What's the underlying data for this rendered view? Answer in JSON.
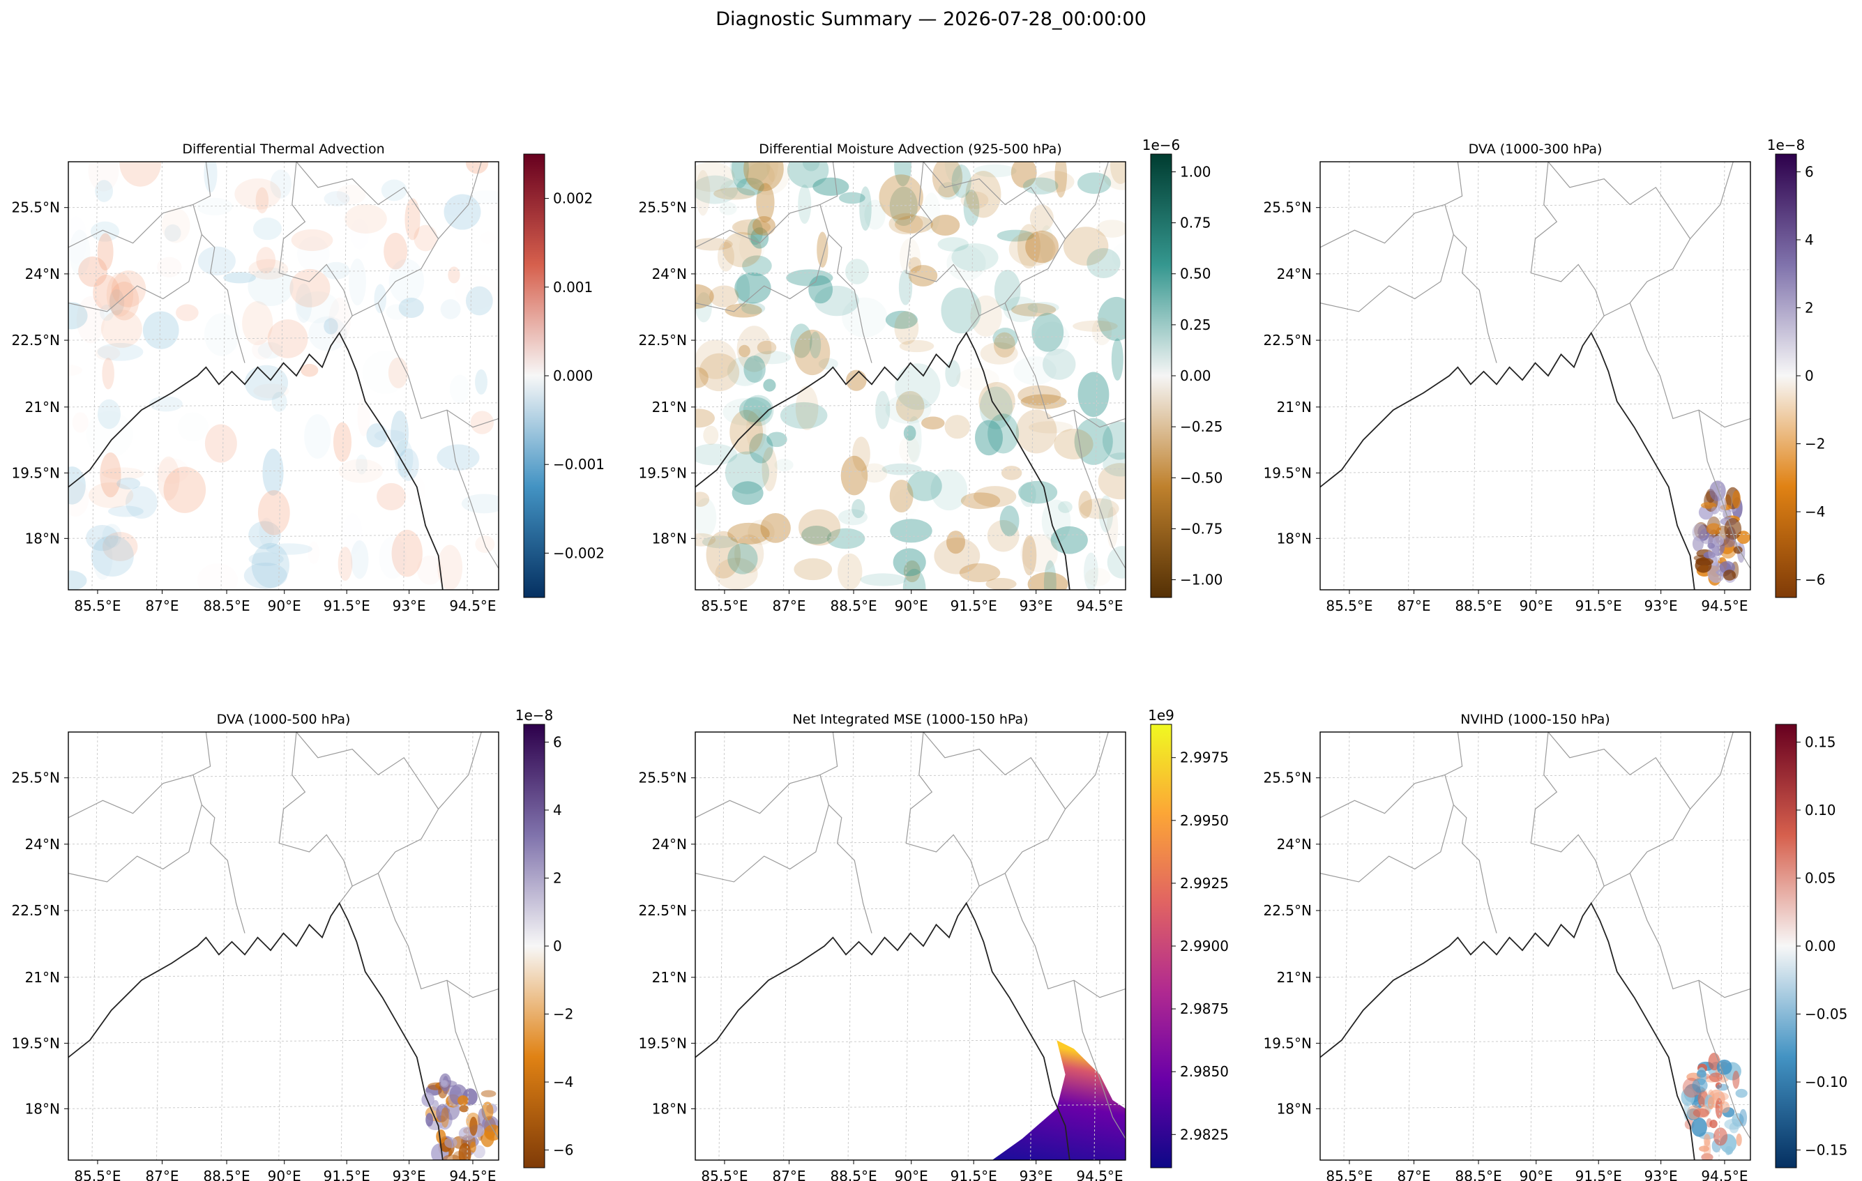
{
  "figure": {
    "suptitle": "Diagnostic Summary — 2026-07-28_00:00:00"
  },
  "axes": {
    "lat_ticks": [
      "25.5°N",
      "24°N",
      "22.5°N",
      "21°N",
      "19.5°N",
      "18°N"
    ],
    "lon_ticks": [
      "85.5°E",
      "87°E",
      "88.5°E",
      "90°E",
      "91.5°E",
      "93°E",
      "94.5°E"
    ]
  },
  "panels": [
    {
      "title": "Differential Thermal Advection",
      "cmap": "RdBu_r",
      "offset_text": "",
      "cbar_ticks": [
        "0.002",
        "0.001",
        "0.000",
        "−0.001",
        "−0.002"
      ],
      "colors": [
        "#67001f",
        "#d6604d",
        "#f7f7f7",
        "#4393c3",
        "#053061"
      ]
    },
    {
      "title": "Differential Moisture Advection (925-500 hPa)",
      "cmap": "BrBG",
      "offset_text": "1e−6",
      "cbar_ticks": [
        "1.00",
        "0.75",
        "0.50",
        "0.25",
        "0.00",
        "−0.25",
        "−0.50",
        "−0.75",
        "−1.00"
      ],
      "colors": [
        "#003c30",
        "#35978f",
        "#f5f5f5",
        "#bf812d",
        "#543005"
      ]
    },
    {
      "title": "DVA (1000-300 hPa)",
      "cmap": "PuOr",
      "offset_text": "1e−8",
      "cbar_ticks": [
        "6",
        "4",
        "2",
        "0",
        "−2",
        "−4",
        "−6"
      ],
      "colors": [
        "#2d004b",
        "#8073ac",
        "#f7f7f7",
        "#e08214",
        "#7f3b08"
      ]
    },
    {
      "title": "DVA (1000-500 hPa)",
      "cmap": "PuOr",
      "offset_text": "1e−8",
      "cbar_ticks": [
        "6",
        "4",
        "2",
        "0",
        "−2",
        "−4",
        "−6"
      ],
      "colors": [
        "#2d004b",
        "#8073ac",
        "#f7f7f7",
        "#e08214",
        "#7f3b08"
      ]
    },
    {
      "title": "Net Integrated MSE (1000-150 hPa)",
      "cmap": "plasma",
      "offset_text": "1e9",
      "cbar_ticks": [
        "2.9975",
        "2.9950",
        "2.9925",
        "2.9900",
        "2.9875",
        "2.9850",
        "2.9825"
      ],
      "colors": [
        "#f0f921",
        "#fca636",
        "#e16462",
        "#b12a90",
        "#6a00a8",
        "#0d0887"
      ]
    },
    {
      "title": "NVIHD (1000-150 hPa)",
      "cmap": "RdBu_r",
      "offset_text": "",
      "cbar_ticks": [
        "0.15",
        "0.10",
        "0.05",
        "0.00",
        "−0.05",
        "−0.10",
        "−0.15"
      ],
      "colors": [
        "#67001f",
        "#d6604d",
        "#f7f7f7",
        "#4393c3",
        "#053061"
      ]
    }
  ]
}
